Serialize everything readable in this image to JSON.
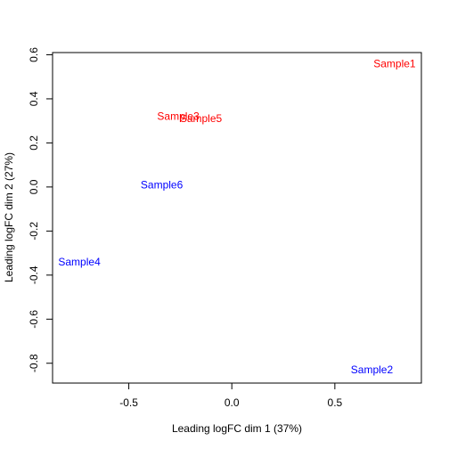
{
  "chart_data": {
    "type": "scatter",
    "title": "",
    "xlabel": "Leading logFC dim 1 (37%)",
    "ylabel": "Leading logFC dim 2 (27%)",
    "xlim": [
      -0.87,
      0.92
    ],
    "ylim": [
      -0.89,
      0.61
    ],
    "xticks": [
      -0.5,
      0.0,
      0.5
    ],
    "xtick_labels": [
      "-0.5",
      "0.0",
      "0.5"
    ],
    "yticks": [
      -0.8,
      -0.6,
      -0.4,
      -0.2,
      0.0,
      0.2,
      0.4,
      0.6
    ],
    "ytick_labels": [
      "-0.8",
      "-0.6",
      "-0.4",
      "-0.2",
      "0.0",
      "0.2",
      "0.4",
      "0.6"
    ],
    "grid": false,
    "points": [
      {
        "label": "Sample1",
        "x": 0.79,
        "y": 0.56,
        "color": "#ff0000"
      },
      {
        "label": "Sample2",
        "x": 0.68,
        "y": -0.83,
        "color": "#0000ff"
      },
      {
        "label": "Sample3",
        "x": -0.26,
        "y": 0.32,
        "color": "#ff0000"
      },
      {
        "label": "Sample4",
        "x": -0.74,
        "y": -0.34,
        "color": "#0000ff"
      },
      {
        "label": "Sample5",
        "x": -0.15,
        "y": 0.31,
        "color": "#ff0000"
      },
      {
        "label": "Sample6",
        "x": -0.34,
        "y": 0.01,
        "color": "#0000ff"
      }
    ]
  }
}
